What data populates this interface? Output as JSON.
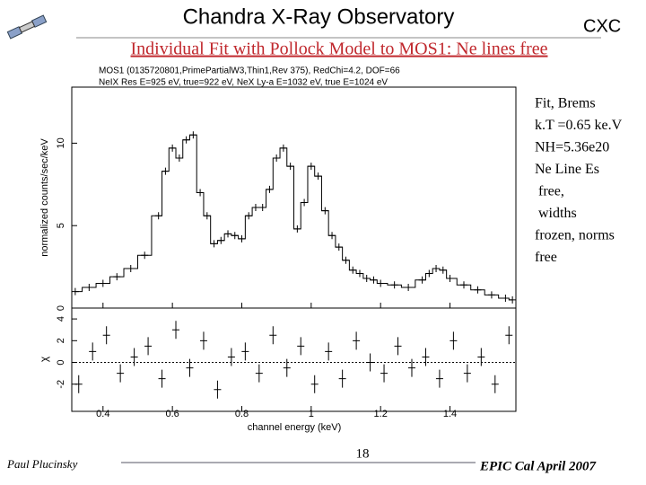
{
  "header": {
    "title": "Chandra X-Ray Observatory",
    "badge": "CXC",
    "subtitle": "Individual Fit with Pollock Model to MOS1: Ne lines free"
  },
  "chart_data": [
    {
      "type": "line",
      "title": "MOS1 (0135720801,PrimePartialW3,Thin1,Rev 375), RedChi=4.2, DOF=66",
      "subtitle": "NeIX Res E=925 eV, true=922 eV, NeX Ly-a E=1032 eV, true E=1024 eV",
      "ylabel": "normalized counts/sec/keV",
      "color": "#000000",
      "x": [
        0.32,
        0.36,
        0.4,
        0.44,
        0.48,
        0.52,
        0.56,
        0.58,
        0.6,
        0.62,
        0.64,
        0.66,
        0.68,
        0.7,
        0.72,
        0.74,
        0.76,
        0.78,
        0.8,
        0.82,
        0.84,
        0.86,
        0.88,
        0.9,
        0.92,
        0.94,
        0.96,
        0.98,
        1.0,
        1.02,
        1.04,
        1.06,
        1.08,
        1.1,
        1.12,
        1.14,
        1.16,
        1.18,
        1.2,
        1.24,
        1.28,
        1.32,
        1.34,
        1.36,
        1.38,
        1.4,
        1.44,
        1.48,
        1.52,
        1.56,
        1.58
      ],
      "values": [
        1.0,
        1.25,
        1.5,
        1.9,
        2.4,
        3.2,
        5.6,
        8.3,
        9.7,
        9.1,
        10.2,
        10.5,
        7.0,
        5.6,
        3.9,
        4.1,
        4.5,
        4.4,
        4.2,
        5.6,
        6.1,
        6.1,
        7.2,
        9.1,
        9.7,
        8.6,
        4.8,
        6.4,
        8.6,
        8.0,
        5.9,
        4.4,
        3.7,
        2.9,
        2.3,
        2.1,
        1.8,
        1.7,
        1.5,
        1.4,
        1.25,
        1.7,
        2.1,
        2.4,
        2.3,
        1.8,
        1.4,
        1.1,
        0.8,
        0.6,
        0.5
      ],
      "xlim": [
        0.31,
        1.59
      ],
      "ylim": [
        0,
        13.4
      ],
      "yticks": [
        0,
        5,
        10
      ]
    },
    {
      "type": "scatter",
      "xlabel": "channel energy (keV)",
      "ylabel": "χ",
      "color": "#000000",
      "x": [
        0.33,
        0.37,
        0.41,
        0.45,
        0.49,
        0.53,
        0.57,
        0.61,
        0.65,
        0.69,
        0.73,
        0.77,
        0.81,
        0.85,
        0.89,
        0.93,
        0.97,
        1.01,
        1.05,
        1.09,
        1.13,
        1.17,
        1.21,
        1.25,
        1.29,
        1.33,
        1.37,
        1.41,
        1.45,
        1.49,
        1.53,
        1.57
      ],
      "values": [
        -2.0,
        1.0,
        2.5,
        -1.0,
        0.5,
        1.5,
        -1.5,
        3.0,
        -0.5,
        2.0,
        -2.5,
        0.5,
        1.0,
        -1.0,
        2.5,
        -0.5,
        1.5,
        -2.0,
        1.0,
        -1.5,
        2.0,
        0.0,
        -1.0,
        1.5,
        -0.5,
        0.5,
        -1.5,
        2.0,
        -1.0,
        0.5,
        -2.0,
        2.5
      ],
      "xlim": [
        0.31,
        1.59
      ],
      "ylim": [
        -4.5,
        5
      ],
      "yticks": [
        -2,
        0,
        2,
        4
      ],
      "xticks": [
        0.4,
        0.6,
        0.8,
        1,
        1.2,
        1.4
      ]
    }
  ],
  "notes": [
    "Fit, Brems",
    "k.T =0.65 ke.V",
    "NH=5.36e20",
    "Ne Line Es",
    " free,",
    " widths",
    "frozen, norms",
    "free"
  ],
  "footer": {
    "author": "Paul Plucinsky",
    "page": "18",
    "event": "EPIC Cal April 2007"
  }
}
